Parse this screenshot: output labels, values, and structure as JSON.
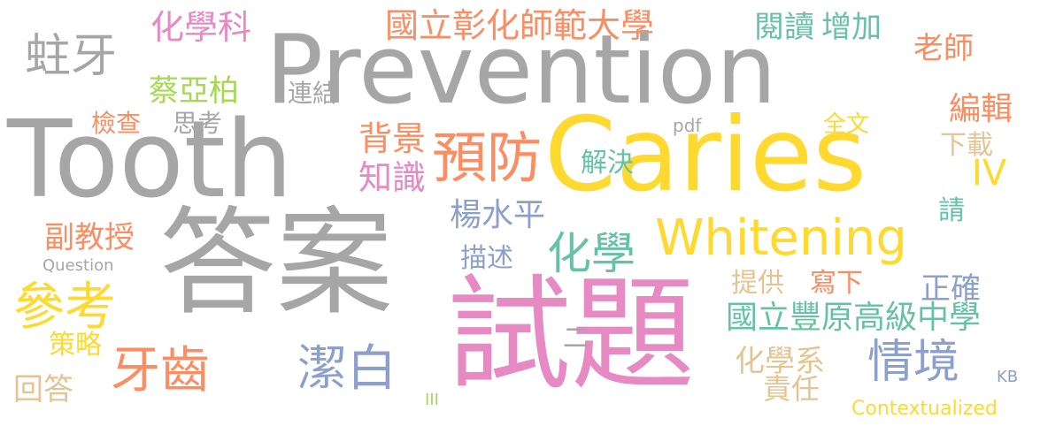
{
  "palette": {
    "gray": "#a6a6a6",
    "yellow": "#ffd92f",
    "pink": "#e78ac3",
    "orange": "#fc8d62",
    "green": "#66c2a5",
    "blue": "#8da0cb",
    "lime": "#a6d854",
    "tan": "#e5c494"
  },
  "words": [
    {
      "text": "Prevention",
      "color": "#a6a6a6"
    },
    {
      "text": "Tooth",
      "color": "#a6a6a6"
    },
    {
      "text": "答案",
      "color": "#a6a6a6"
    },
    {
      "text": "Caries",
      "color": "#ffd92f"
    },
    {
      "text": "試題",
      "color": "#e78ac3"
    },
    {
      "text": "Whitening",
      "color": "#ffd92f"
    },
    {
      "text": "蛀牙",
      "color": "#a6a6a6"
    },
    {
      "text": "化學科",
      "color": "#e78ac3"
    },
    {
      "text": "國立彰化師範大學",
      "color": "#fc8d62"
    },
    {
      "text": "閱讀",
      "color": "#66c2a5"
    },
    {
      "text": "增加",
      "color": "#66c2a5"
    },
    {
      "text": "老師",
      "color": "#fc8d62"
    },
    {
      "text": "蔡亞柏",
      "color": "#a6d854"
    },
    {
      "text": "連結",
      "color": "#a6a6a6"
    },
    {
      "text": "檢查",
      "color": "#fc8d62"
    },
    {
      "text": "思考",
      "color": "#a6a6a6"
    },
    {
      "text": "背景",
      "color": "#fc8d62"
    },
    {
      "text": "預防",
      "color": "#fc8d62"
    },
    {
      "text": "pdf",
      "color": "#a6a6a6"
    },
    {
      "text": "全文",
      "color": "#ffd92f"
    },
    {
      "text": "編輯",
      "color": "#fc8d62"
    },
    {
      "text": "下載",
      "color": "#e5c494"
    },
    {
      "text": "知識",
      "color": "#e78ac3"
    },
    {
      "text": "解決",
      "color": "#66c2a5"
    },
    {
      "text": "IV",
      "color": "#ffd92f"
    },
    {
      "text": "楊水平",
      "color": "#8da0cb"
    },
    {
      "text": "請",
      "color": "#66c2a5"
    },
    {
      "text": "副教授",
      "color": "#fc8d62"
    },
    {
      "text": "Question",
      "color": "#a6a6a6"
    },
    {
      "text": "描述",
      "color": "#8da0cb"
    },
    {
      "text": "化學",
      "color": "#66c2a5"
    },
    {
      "text": "提供",
      "color": "#e5c494"
    },
    {
      "text": "寫下",
      "color": "#fc8d62"
    },
    {
      "text": "正確",
      "color": "#8da0cb"
    },
    {
      "text": "參考",
      "color": "#ffd92f"
    },
    {
      "text": "國立豐原高級中學",
      "color": "#66c2a5"
    },
    {
      "text": "策略",
      "color": "#ffd92f"
    },
    {
      "text": "牙齒",
      "color": "#fc8d62"
    },
    {
      "text": "潔白",
      "color": "#8da0cb"
    },
    {
      "text": "二",
      "color": "#a6a6a6"
    },
    {
      "text": "化學系",
      "color": "#e5c494"
    },
    {
      "text": "情境",
      "color": "#8da0cb"
    },
    {
      "text": "回答",
      "color": "#e5c494"
    },
    {
      "text": "III",
      "color": "#a6d854"
    },
    {
      "text": "責任",
      "color": "#e5c494"
    },
    {
      "text": "KB",
      "color": "#8da0cb"
    },
    {
      "text": "Contextualized",
      "color": "#ffd92f"
    }
  ]
}
